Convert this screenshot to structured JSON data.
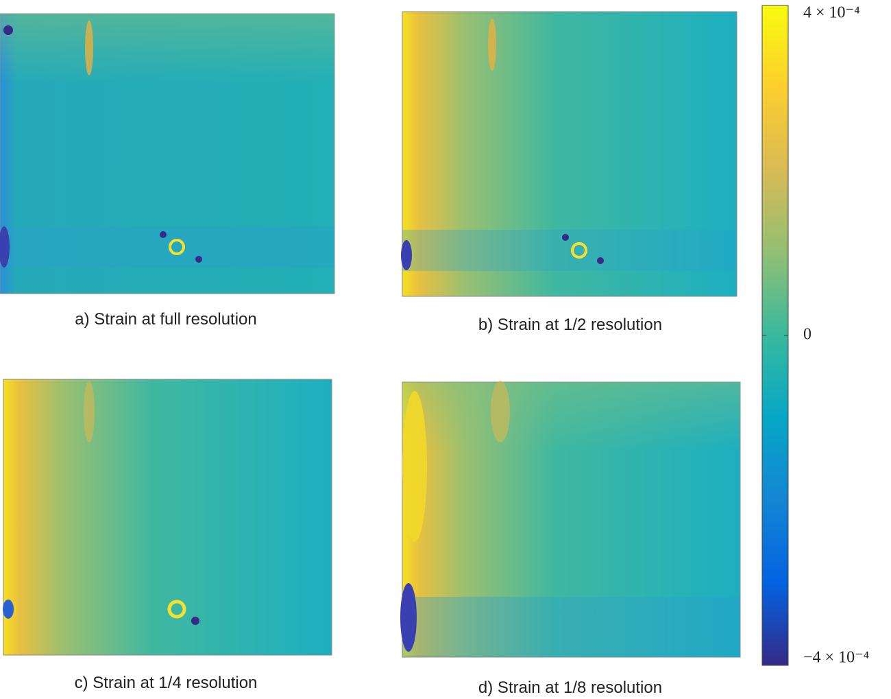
{
  "panels": [
    {
      "caption": "a) Strain at full resolution"
    },
    {
      "caption": "b) Strain at 1/2 resolution"
    },
    {
      "caption": "c) Strain at 1/4 resolution"
    },
    {
      "caption": "d) Strain at 1/8 resolution"
    }
  ],
  "colorbar": {
    "lim": [
      -0.0004,
      0.0004
    ],
    "ticks": [
      {
        "value": 0.0004,
        "label": "4 × 10⁻⁴"
      },
      {
        "value": 0,
        "label": "0"
      },
      {
        "value": -0.0004,
        "label": "−4 × 10⁻⁴"
      }
    ]
  }
}
